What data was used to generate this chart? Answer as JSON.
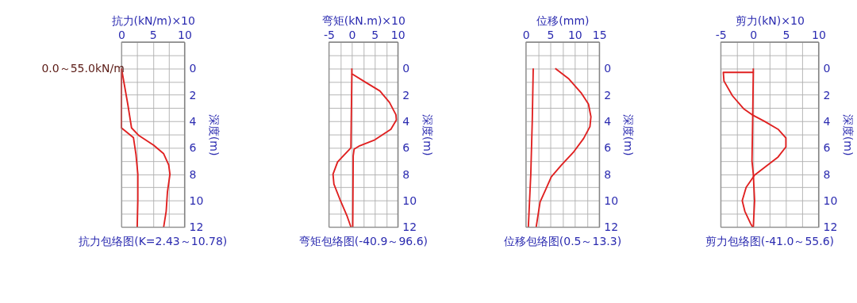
{
  "chart_data": [
    {
      "type": "line",
      "orientation": "horizontal",
      "title": "抗力包络图(K=2.43～10.78)",
      "xlabel": "抗力(kN/m)×10",
      "ylabel": "深度(m)",
      "xlim": [
        0,
        10
      ],
      "xticks": [
        0,
        {
          "value": 2.5,
          "label": null
        },
        5,
        {
          "value": 7.5,
          "label": null
        },
        10
      ],
      "ylim": [
        12,
        -2
      ],
      "yticks": [
        {
          "value": -2,
          "label": null
        },
        {
          "value": -1,
          "label": null
        },
        0,
        {
          "value": 1,
          "label": null
        },
        2,
        {
          "value": 3,
          "label": null
        },
        4,
        {
          "value": 5,
          "label": null
        },
        6,
        {
          "value": 7,
          "label": null
        },
        8,
        {
          "value": 9,
          "label": null
        },
        10,
        {
          "value": 11,
          "label": null
        },
        12
      ],
      "grid": true,
      "line_style": "solid",
      "marker": "none",
      "annotations": [
        {
          "text": "0.0～55.0kN/m",
          "x": 0,
          "y": 0
        }
      ],
      "series": [
        {
          "color": "#e02020",
          "x": [
            0,
            4.5,
            5.23,
            6.5,
            8,
            10,
            12
          ],
          "values": [
            0,
            0,
            1.9,
            2.3,
            2.6,
            2.6,
            2.5
          ]
        },
        {
          "color": "#e02020",
          "x": [
            0,
            2.7,
            4.5,
            5.05,
            5.8,
            6.45,
            7.3,
            8.0,
            9.35,
            10.8,
            12
          ],
          "values": [
            0,
            1.0,
            1.6,
            2.7,
            5.1,
            6.7,
            7.5,
            7.7,
            7.3,
            7.1,
            6.7
          ]
        }
      ]
    },
    {
      "type": "line",
      "orientation": "horizontal",
      "title": "弯矩包络图(-40.9～96.6)",
      "xlabel": "弯矩(kN.m)×10",
      "ylabel": "深度(m)",
      "xlim": [
        -5,
        10
      ],
      "xticks": [
        -5,
        {
          "value": -2.5,
          "label": null
        },
        0,
        {
          "value": 2.5,
          "label": null
        },
        5,
        {
          "value": 7.5,
          "label": null
        },
        10
      ],
      "ylim": [
        12,
        -2
      ],
      "yticks": [
        {
          "value": -2,
          "label": null
        },
        {
          "value": -1,
          "label": null
        },
        0,
        {
          "value": 1,
          "label": null
        },
        2,
        {
          "value": 3,
          "label": null
        },
        4,
        {
          "value": 5,
          "label": null
        },
        6,
        {
          "value": 7,
          "label": null
        },
        8,
        {
          "value": 9,
          "label": null
        },
        10,
        {
          "value": 11,
          "label": null
        },
        12
      ],
      "grid": true,
      "line_style": "solid",
      "marker": "none",
      "series": [
        {
          "color": "#e02020",
          "x": [
            0,
            0.4,
            1.07,
            1.7,
            2.57,
            3.5,
            3.9,
            4.6,
            5.4,
            5.85,
            6.1,
            6.6,
            12
          ],
          "values": [
            0,
            0,
            3.1,
            6.1,
            8.2,
            9.6,
            9.7,
            8.5,
            5.0,
            1.7,
            0.5,
            0.3,
            0.2
          ]
        },
        {
          "color": "#e02020",
          "x": [
            0.4,
            6.0,
            7.07,
            8.0,
            8.75,
            9.9,
            11.2,
            12
          ],
          "values": [
            0,
            -0.2,
            -3.1,
            -4.1,
            -3.9,
            -2.6,
            -1.0,
            -0.2
          ]
        }
      ]
    },
    {
      "type": "line",
      "orientation": "horizontal",
      "title": "位移包络图(0.5～13.3)",
      "xlabel": "位移(mm)",
      "ylabel": "深度(m)",
      "xlim": [
        0,
        15
      ],
      "xticks": [
        0,
        {
          "value": 2.5,
          "label": null
        },
        5,
        {
          "value": 7.5,
          "label": null
        },
        10,
        {
          "value": 12.5,
          "label": null
        },
        15
      ],
      "ylim": [
        12,
        -2
      ],
      "yticks": [
        {
          "value": -2,
          "label": null
        },
        {
          "value": -1,
          "label": null
        },
        0,
        {
          "value": 1,
          "label": null
        },
        2,
        {
          "value": 3,
          "label": null
        },
        4,
        {
          "value": 5,
          "label": null
        },
        6,
        {
          "value": 7,
          "label": null
        },
        8,
        {
          "value": 9,
          "label": null
        },
        10,
        {
          "value": 11,
          "label": null
        },
        12
      ],
      "grid": true,
      "line_style": "solid",
      "marker": "none",
      "series": [
        {
          "color": "#e02020",
          "x": [
            0,
            4,
            8,
            12
          ],
          "values": [
            1.5,
            1.3,
            1.0,
            0.5
          ]
        },
        {
          "color": "#e02020",
          "x": [
            0,
            0.8,
            1.85,
            2.7,
            3.66,
            4.4,
            5.3,
            6.3,
            7.3,
            8.2,
            9.2,
            10.1,
            12
          ],
          "values": [
            6.0,
            8.8,
            11.3,
            12.8,
            13.3,
            13.1,
            11.8,
            9.8,
            7.3,
            5.2,
            4.0,
            2.9,
            2.1
          ]
        }
      ]
    },
    {
      "type": "line",
      "orientation": "horizontal",
      "title": "剪力包络图(-41.0～55.6)",
      "xlabel": "剪力(kN)×10",
      "ylabel": "深度(m)",
      "xlim": [
        -5,
        10
      ],
      "xticks": [
        -5,
        {
          "value": -2.5,
          "label": null
        },
        0,
        {
          "value": 2.5,
          "label": null
        },
        5,
        {
          "value": 7.5,
          "label": null
        },
        10
      ],
      "ylim": [
        12,
        -2
      ],
      "yticks": [
        {
          "value": -2,
          "label": null
        },
        {
          "value": -1,
          "label": null
        },
        0,
        {
          "value": 1,
          "label": null
        },
        2,
        {
          "value": 3,
          "label": null
        },
        4,
        {
          "value": 5,
          "label": null
        },
        6,
        {
          "value": 7,
          "label": null
        },
        8,
        {
          "value": 9,
          "label": null
        },
        10,
        {
          "value": 11,
          "label": null
        },
        12
      ],
      "grid": true,
      "line_style": "solid",
      "marker": "none",
      "series": [
        {
          "color": "#e02020",
          "x": [
            0,
            0.3,
            0.3,
            0.95,
            2.07,
            3.04,
            3.5,
            4.0,
            4.6,
            5.26,
            5.94,
            6.7,
            7.5,
            8.07,
            9.0,
            10.0,
            10.8,
            11.75,
            12
          ],
          "values": [
            0,
            0,
            -4.6,
            -4.5,
            -3.2,
            -1.5,
            -0.2,
            1.7,
            3.8,
            5.0,
            5.0,
            3.8,
            1.7,
            0.2,
            -1.1,
            -1.7,
            -1.3,
            -0.4,
            -0.1
          ]
        },
        {
          "color": "#e02020",
          "x": [
            0.3,
            4,
            7,
            8,
            10,
            12
          ],
          "values": [
            0,
            -0.1,
            -0.2,
            0,
            0.2,
            0
          ]
        }
      ]
    }
  ]
}
